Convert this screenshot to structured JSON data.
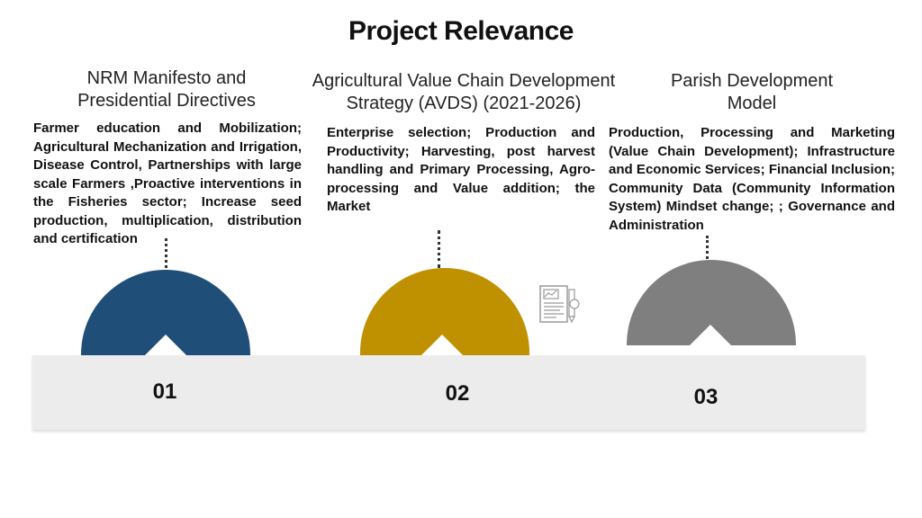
{
  "title": "Project Relevance",
  "columns": [
    {
      "heading": "NRM Manifesto and Presidential Directives",
      "text": "Farmer education and Mobilization; Agricultural Mechanization and Irrigation, Disease Control, Partnerships with large scale Farmers ,Proactive interventions in the Fisheries sector; Increase seed production, multiplication, distribution and certification",
      "number": "01",
      "color": "#1f4e79"
    },
    {
      "heading": "Agricultural Value Chain Development Strategy (AVDS) (2021-2026)",
      "text": "Enterprise selection; Production and Productivity; Harvesting, post harvest handling and Primary Processing, Agro-processing and Value addition; the Market",
      "number": "02",
      "color": "#bf9000"
    },
    {
      "heading": "Parish Development Model",
      "text": "Production, Processing and Marketing (Value Chain Development); Infrastructure and Economic Services; Financial Inclusion; Community Data (Community Information System) Mindset change; ; Governance and Administration",
      "number": "03",
      "color": "#7f7f7f"
    }
  ],
  "icons": {
    "center": "report-document-icon"
  }
}
